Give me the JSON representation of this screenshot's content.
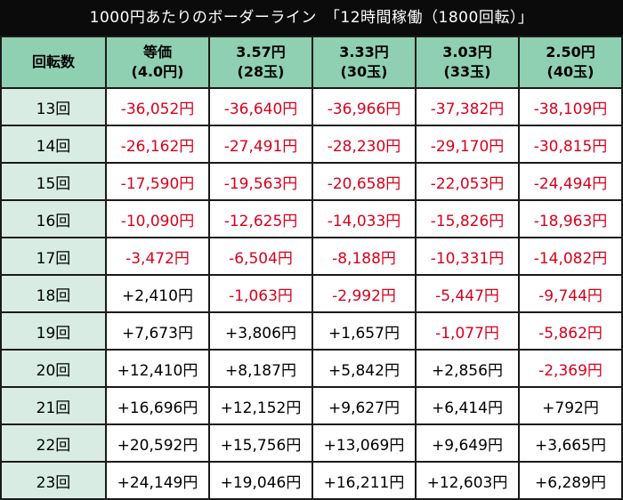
{
  "title": "1000円あたりのボーダーライン　「12時間稼働（1800回転）」",
  "header": {
    "row_label": "回転数",
    "columns": [
      {
        "top": "等価",
        "bottom": "(4.0円)"
      },
      {
        "top": "3.57円",
        "bottom": "(28玉)"
      },
      {
        "top": "3.33円",
        "bottom": "(30玉)"
      },
      {
        "top": "3.03円",
        "bottom": "(33玉)"
      },
      {
        "top": "2.50円",
        "bottom": "(40玉)"
      }
    ]
  },
  "colors": {
    "negative": "#d8001c",
    "positive": "#000000",
    "header_bg": "#8fcfb2",
    "label_bg": "#d8ece3"
  },
  "rows": [
    {
      "label": "13回",
      "values": [
        "-36,052円",
        "-36,640円",
        "-36,966円",
        "-37,382円",
        "-38,109円"
      ]
    },
    {
      "label": "14回",
      "values": [
        "-26,162円",
        "-27,491円",
        "-28,230円",
        "-29,170円",
        "-30,815円"
      ]
    },
    {
      "label": "15回",
      "values": [
        "-17,590円",
        "-19,563円",
        "-20,658円",
        "-22,053円",
        "-24,494円"
      ]
    },
    {
      "label": "16回",
      "values": [
        "-10,090円",
        "-12,625円",
        "-14,033円",
        "-15,826円",
        "-18,963円"
      ]
    },
    {
      "label": "17回",
      "values": [
        "-3,472円",
        "-6,504円",
        "-8,188円",
        "-10,331円",
        "-14,082円"
      ]
    },
    {
      "label": "18回",
      "values": [
        "+2,410円",
        "-1,063円",
        "-2,992円",
        "-5,447円",
        "-9,744円"
      ]
    },
    {
      "label": "19回",
      "values": [
        "+7,673円",
        "+3,806円",
        "+1,657円",
        "-1,077円",
        "-5,862円"
      ]
    },
    {
      "label": "20回",
      "values": [
        "+12,410円",
        "+8,187円",
        "+5,842円",
        "+2,856円",
        "-2,369円"
      ]
    },
    {
      "label": "21回",
      "values": [
        "+16,696円",
        "+12,152円",
        "+9,627円",
        "+6,414円",
        "+792円"
      ]
    },
    {
      "label": "22回",
      "values": [
        "+20,592円",
        "+15,756円",
        "+13,069円",
        "+9,649円",
        "+3,665円"
      ]
    },
    {
      "label": "23回",
      "values": [
        "+24,149円",
        "+19,046円",
        "+16,211円",
        "+12,603円",
        "+6,289円"
      ]
    }
  ]
}
